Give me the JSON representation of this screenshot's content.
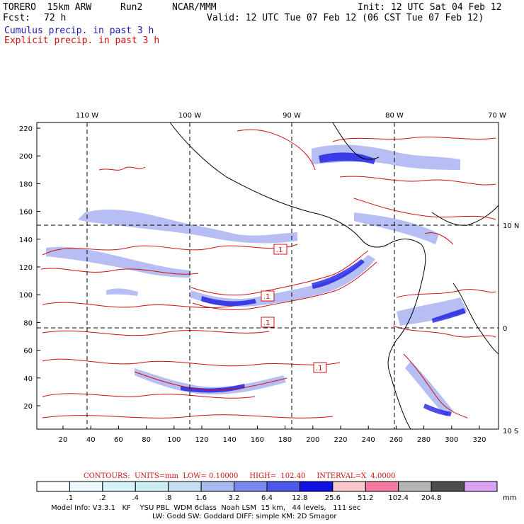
{
  "header": {
    "model": "TORERO  15km ARW",
    "run": "Run2",
    "org": "NCAR/MMM",
    "init": "Init: 12 UTC Sat 04 Feb 12",
    "fcst_label": "Fcst:",
    "fcst_value": "72 h",
    "valid": "Valid: 12 UTC Tue 07 Feb 12 (06 CST Tue 07 Feb 12)",
    "field1": "Cumulus precip. in past 3 h",
    "field2": "Explicit precip. in past 3 h"
  },
  "colors": {
    "field1": "#1a1ab0",
    "field2": "#d01010"
  },
  "map": {
    "top_lon_labels": [
      "110 W",
      "100 W",
      "90 W",
      "80 W",
      "70 W"
    ],
    "right_lat_labels": [
      "10 N",
      "0",
      "10 S"
    ],
    "y_ticks": [
      "220",
      "200",
      "180",
      "160",
      "140",
      "120",
      "100",
      "80",
      "60",
      "40",
      "20"
    ],
    "x_ticks": [
      "20",
      "40",
      "60",
      "80",
      "100",
      "120",
      "140",
      "160",
      "180",
      "200",
      "220",
      "240",
      "260",
      "280",
      "300",
      "320"
    ],
    "box_labels": [
      ".1",
      ".1",
      ".1",
      ".1"
    ]
  },
  "contours": {
    "label": "CONTOURS:",
    "units": "UNITS=mm",
    "low": "LOW= 0.10000",
    "high": "HIGH=  102.40",
    "interval": "INTERVAL=X  4.0000"
  },
  "colorbar": {
    "labels": [
      ".1",
      ".2",
      ".4",
      ".8",
      "1.6",
      "3.2",
      "6.4",
      "12.8",
      "25.6",
      "51.2",
      "102.4",
      "204.8"
    ],
    "unit": "mm",
    "colors": [
      "#ffffff",
      "#eaf7fb",
      "#d6f1f8",
      "#ccecf4",
      "#c7ddf2",
      "#a9b8ee",
      "#7a88ea",
      "#4d58ea",
      "#1010e0",
      "#f7c7cb",
      "#f27aa0",
      "#b4b4b4",
      "#4d4d4d",
      "#d9a2f2"
    ]
  },
  "footer": {
    "line1": "Model Info: V3.3.1   KF    YSU PBL  WDM 6class  Noah LSM  15 km,   44 levels,   111 sec",
    "line2": "LW: Godd SW: Goddard DIFF: simple KM: 2D Smagor"
  }
}
